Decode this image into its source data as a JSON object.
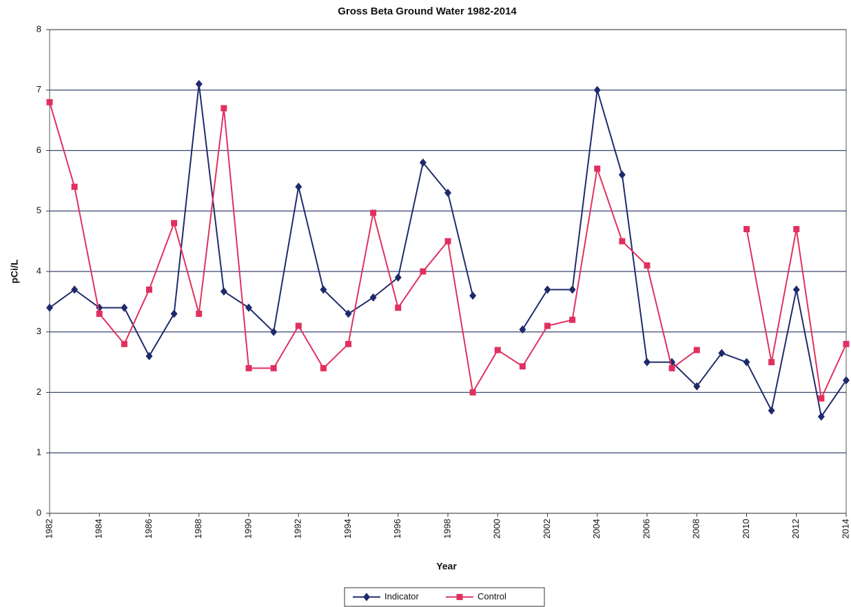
{
  "chart_data": {
    "type": "line",
    "title": "Gross Beta Ground Water 1982-2014",
    "xlabel": "Year",
    "ylabel": "pCi/L",
    "x": [
      1982,
      1983,
      1984,
      1985,
      1986,
      1987,
      1988,
      1989,
      1990,
      1991,
      1992,
      1993,
      1994,
      1995,
      1996,
      1997,
      1998,
      1999,
      2000,
      2001,
      2002,
      2003,
      2004,
      2005,
      2006,
      2007,
      2008,
      2009,
      2010,
      2011,
      2012,
      2013,
      2014
    ],
    "series": [
      {
        "name": "Indicator",
        "color": "#1f2a6b",
        "marker": "diamond",
        "values": [
          3.4,
          3.7,
          3.4,
          3.4,
          2.6,
          3.3,
          7.1,
          3.67,
          3.4,
          3.0,
          5.4,
          3.7,
          3.3,
          3.57,
          3.9,
          5.8,
          5.3,
          3.6,
          null,
          3.04,
          3.7,
          3.7,
          7.0,
          5.6,
          2.5,
          2.5,
          2.1,
          2.65,
          2.5,
          1.7,
          3.7,
          1.6,
          2.2
        ]
      },
      {
        "name": "Control",
        "color": "#e0305f",
        "marker": "square",
        "values": [
          6.8,
          5.4,
          3.3,
          2.8,
          3.7,
          4.8,
          3.3,
          6.7,
          2.4,
          2.4,
          3.1,
          2.4,
          2.8,
          4.97,
          3.4,
          4.0,
          4.5,
          2.0,
          2.7,
          2.43,
          3.1,
          3.2,
          5.7,
          4.5,
          4.1,
          2.4,
          2.7,
          null,
          4.7,
          2.5,
          4.7,
          1.9,
          2.8
        ]
      }
    ],
    "xlim": [
      1982,
      2014
    ],
    "xticks": [
      1982,
      1984,
      1986,
      1988,
      1990,
      1992,
      1994,
      1996,
      1998,
      2000,
      2002,
      2004,
      2006,
      2008,
      2010,
      2012,
      2014
    ],
    "ylim": [
      0,
      8
    ],
    "yticks": [
      0,
      1,
      2,
      3,
      4,
      5,
      6,
      7,
      8
    ],
    "grid": true,
    "legend": "bottom"
  }
}
